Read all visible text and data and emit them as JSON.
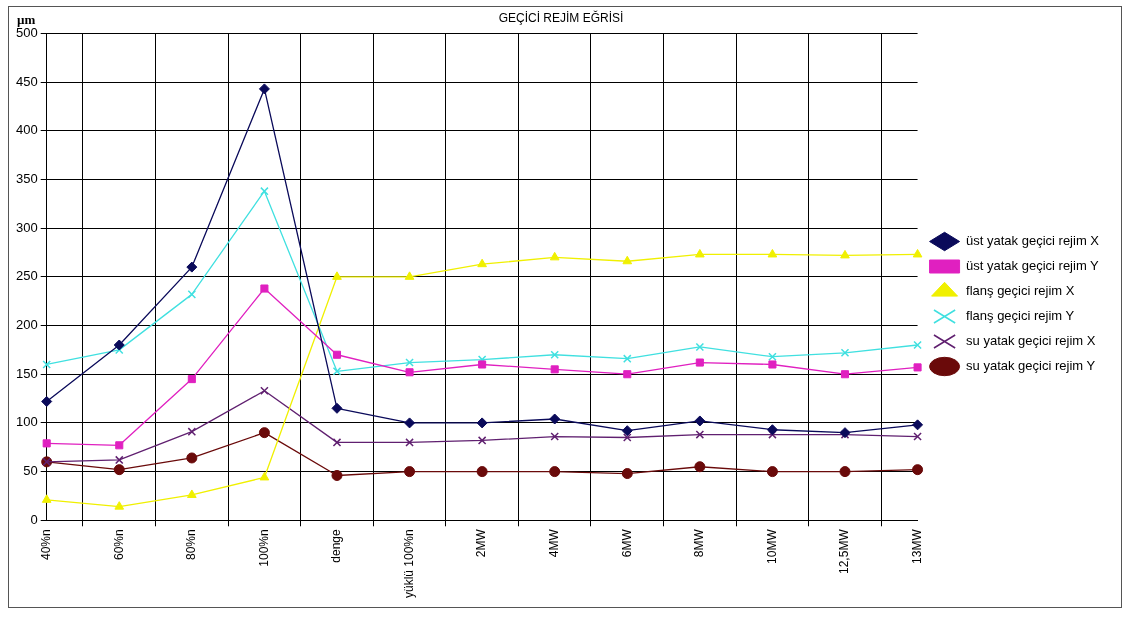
{
  "chart_data": {
    "type": "line",
    "title": "GEÇİCİ REJİM EĞRİSİ",
    "ylabel": "µm",
    "categories": [
      "40%n",
      "60%n",
      "80%n",
      "100%n",
      "denge",
      "yüklü 100%n",
      "2MW",
      "4MW",
      "6MW",
      "8MW",
      "10MW",
      "12,5MW",
      "13MW"
    ],
    "series": [
      {
        "name": "üst yatak geçici rejim X",
        "color": "#0a0a5a",
        "marker": "diamond",
        "values": [
          122,
          180,
          260,
          443,
          115,
          100,
          100,
          104,
          92,
          102,
          93,
          90,
          98
        ]
      },
      {
        "name": "üst yatak geçici rejim Y",
        "color": "#e020c0",
        "marker": "square",
        "values": [
          79,
          77,
          145,
          238,
          170,
          152,
          160,
          155,
          150,
          162,
          160,
          150,
          157
        ]
      },
      {
        "name": "flanş geçici rejim X",
        "color": "#f0f000",
        "marker": "triangle",
        "values": [
          21,
          14,
          26,
          44,
          250,
          250,
          263,
          270,
          266,
          273,
          273,
          272,
          273
        ]
      },
      {
        "name": "flanş geçici rejim Y",
        "color": "#40e0e0",
        "marker": "cross",
        "values": [
          160,
          175,
          232,
          338,
          153,
          162,
          165,
          170,
          166,
          178,
          168,
          172,
          180
        ]
      },
      {
        "name": "su yatak geçici rejim X",
        "color": "#602070",
        "marker": "cross",
        "values": [
          60,
          62,
          91,
          133,
          80,
          80,
          82,
          86,
          85,
          88,
          88,
          88,
          86
        ]
      },
      {
        "name": "su yatak geçici rejim Y",
        "color": "#6a0a0a",
        "marker": "circle",
        "values": [
          60,
          52,
          64,
          90,
          46,
          50,
          50,
          50,
          48,
          55,
          50,
          50,
          52
        ]
      }
    ],
    "ylim": [
      0,
      500
    ],
    "yticks": [
      0,
      50,
      100,
      150,
      200,
      250,
      300,
      350,
      400,
      450,
      500
    ],
    "grid": true,
    "legend": "right",
    "line_style": "solid"
  }
}
